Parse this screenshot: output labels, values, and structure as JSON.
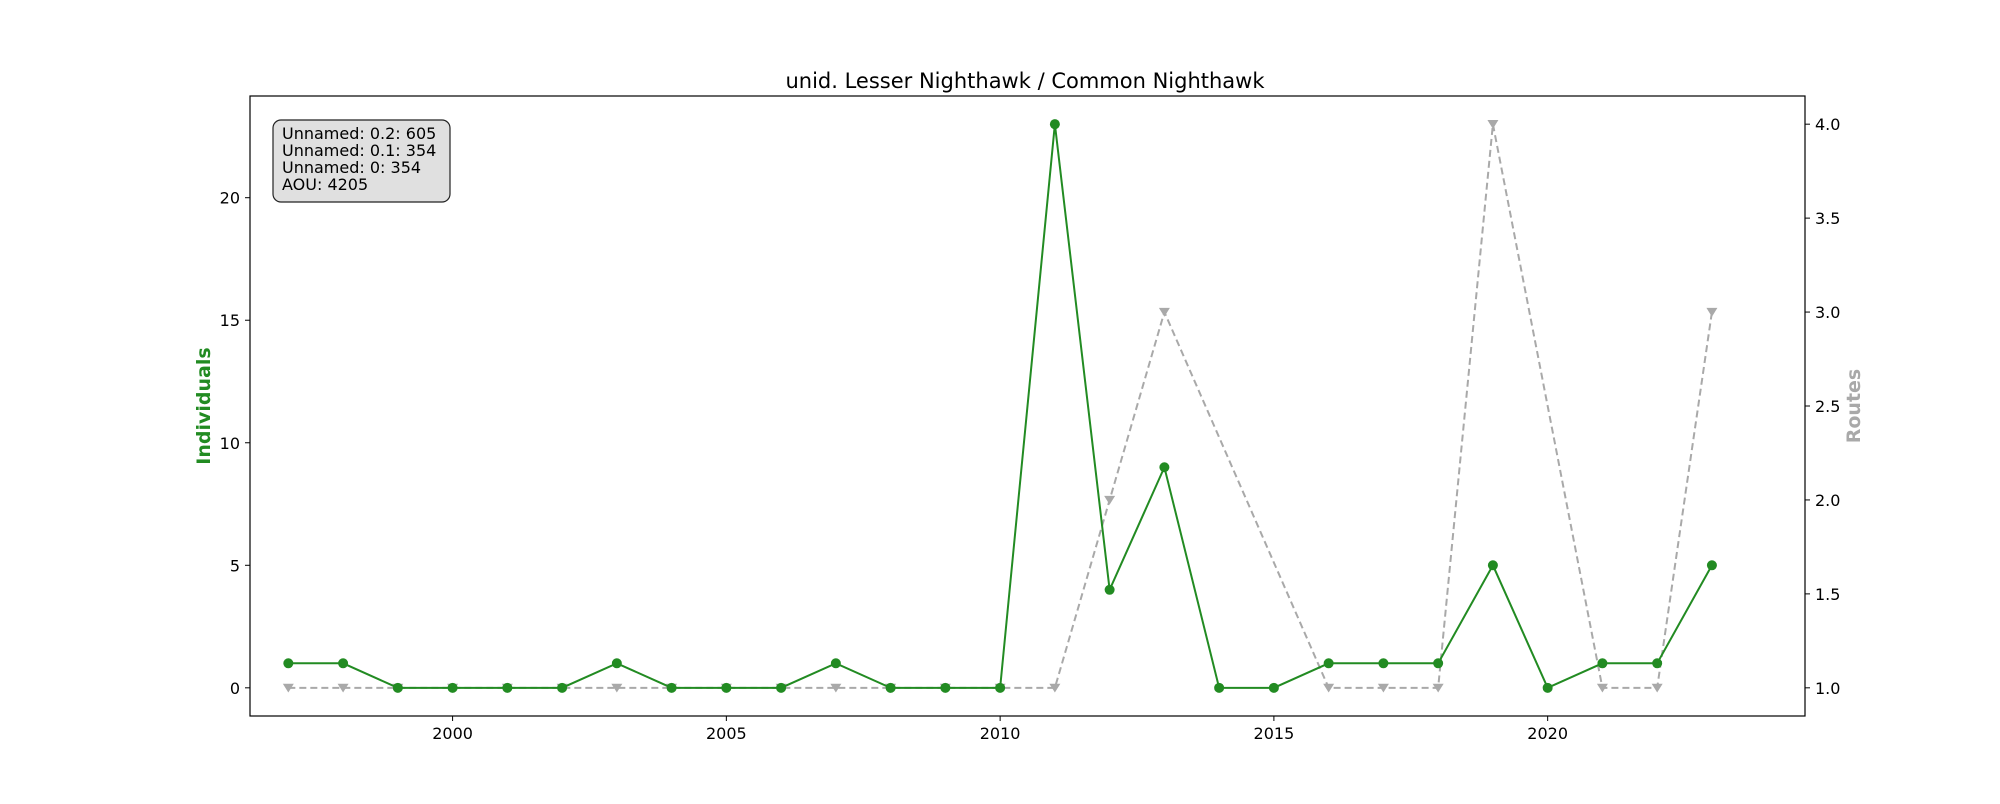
{
  "chart_data": {
    "type": "line",
    "title": "unid. Lesser Nighthawk / Common Nighthawk",
    "xlabel": "",
    "ylabel_left": "Individuals",
    "ylabel_right": "Routes",
    "xlim": [
      1996.3,
      2024.7
    ],
    "ylim_left": [
      -1.15,
      24.15
    ],
    "ylim_right": [
      0.85,
      4.15
    ],
    "x_ticks": [
      2000,
      2005,
      2010,
      2015,
      2020
    ],
    "y_ticks_left": [
      0,
      5,
      10,
      15,
      20
    ],
    "y_ticks_right": [
      1.0,
      1.5,
      2.0,
      2.5,
      3.0,
      3.5,
      4.0
    ],
    "grid": false,
    "x": [
      1997,
      1998,
      1999,
      2000,
      2001,
      2002,
      2003,
      2004,
      2005,
      2006,
      2007,
      2008,
      2009,
      2010,
      2011,
      2012,
      2013,
      2014,
      2015,
      2016,
      2017,
      2018,
      2019,
      2020,
      2021,
      2022,
      2023
    ],
    "series": [
      {
        "axis": "left",
        "color": "#228b22",
        "style": "solid",
        "marker": "circle",
        "x": [
          1997,
          1998,
          1999,
          2000,
          2001,
          2002,
          2003,
          2004,
          2005,
          2006,
          2007,
          2008,
          2009,
          2010,
          2011,
          2012,
          2013,
          2014,
          2015,
          2016,
          2017,
          2018,
          2019,
          2020,
          2021,
          2022,
          2023
        ],
        "values": [
          1,
          1,
          0,
          0,
          0,
          0,
          1,
          0,
          0,
          0,
          1,
          0,
          0,
          0,
          23,
          4,
          9,
          0,
          0,
          1,
          1,
          1,
          5,
          0,
          1,
          1,
          5
        ]
      },
      {
        "axis": "right",
        "color": "#a9a9a9",
        "style": "dashed",
        "marker": "triangle-down",
        "x": [
          1997,
          1998,
          1999,
          2000,
          2001,
          2002,
          2003,
          2004,
          2005,
          2006,
          2007,
          2008,
          2009,
          2010,
          2011,
          2012,
          2013,
          2016,
          2017,
          2018,
          2019,
          2021,
          2022,
          2023
        ],
        "values": [
          1,
          1,
          1,
          1,
          1,
          1,
          1,
          1,
          1,
          1,
          1,
          1,
          1,
          1,
          1,
          2,
          3,
          1,
          1,
          1,
          4,
          1,
          1,
          3
        ]
      }
    ],
    "info_box": {
      "placement": "top-left",
      "lines": [
        "Unnamed: 0.2: 605",
        "Unnamed: 0.1: 354",
        "Unnamed: 0: 354",
        "AOU: 4205"
      ]
    }
  }
}
